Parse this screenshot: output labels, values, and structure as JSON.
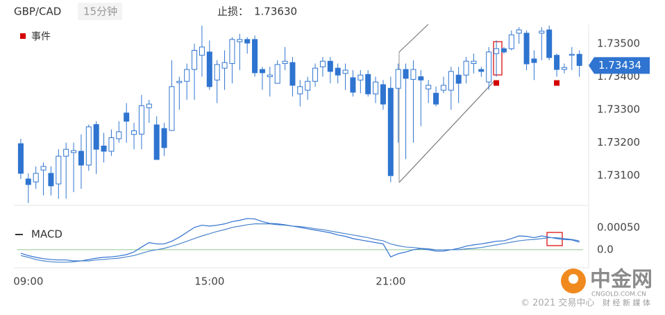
{
  "chart_data": [
    {
      "type": "candlestick",
      "title": "GBP/CAD",
      "subtitle": "15分钟",
      "stop_loss_label": "止损：",
      "stop_loss": "1.73630",
      "categories": [
        null,
        "09:00",
        null,
        null,
        null,
        null,
        null,
        null,
        null,
        null,
        null,
        null,
        null,
        null,
        null,
        null,
        null,
        null,
        null,
        null,
        null,
        null,
        null,
        null,
        null,
        "15:00",
        null,
        null,
        null,
        null,
        null,
        null,
        null,
        null,
        null,
        null,
        null,
        null,
        null,
        null,
        null,
        null,
        null,
        null,
        null,
        null,
        null,
        null,
        null,
        "21:00",
        null,
        null,
        null,
        null,
        null,
        null,
        null,
        null,
        null,
        null,
        null,
        null,
        null,
        null,
        null,
        null,
        null,
        null,
        null,
        null,
        null,
        null,
        null,
        null,
        null
      ],
      "open": [
        1.73197,
        1.7309,
        1.73081,
        1.73117,
        1.73107,
        1.73075,
        1.73159,
        1.7317,
        1.73174,
        1.73132,
        1.73255,
        1.7319,
        1.73174,
        1.73212,
        1.7329,
        1.73225,
        1.73226,
        1.73306,
        1.73254,
        1.73243,
        1.73237,
        1.73382,
        1.73386,
        1.73422,
        1.73465,
        1.73475,
        1.7339,
        1.73426,
        1.7344,
        1.73506,
        1.73513,
        1.73513,
        1.73422,
        1.734,
        1.7338,
        1.7344,
        1.73443,
        1.73348,
        1.73359,
        1.73386,
        1.7343,
        1.73447,
        1.73426,
        1.7341,
        1.73397,
        1.7339,
        1.73407,
        1.73348,
        1.73376,
        1.73365,
        1.73365,
        1.73422,
        1.73392,
        1.734,
        1.73363,
        1.7335,
        1.73359,
        1.73359,
        1.73405,
        1.73405,
        1.7344,
        1.73422,
        1.73384,
        1.7347,
        1.73485,
        1.73485,
        1.73532,
        1.73532,
        1.73454,
        1.73532,
        1.73542,
        1.73465,
        1.73422,
        1.73465,
        1.73468
      ],
      "high": [
        1.73212,
        1.73107,
        1.73128,
        1.7314,
        1.73128,
        1.7318,
        1.732,
        1.732,
        1.73225,
        1.73255,
        1.73265,
        1.7323,
        1.7324,
        1.73265,
        1.7332,
        1.7326,
        1.73345,
        1.7333,
        1.7328,
        1.7326,
        1.7345,
        1.734,
        1.7344,
        1.735,
        1.73555,
        1.7351,
        1.7345,
        1.7348,
        1.7352,
        1.7353,
        1.7352,
        1.73525,
        1.7343,
        1.7343,
        1.7345,
        1.7349,
        1.7346,
        1.7339,
        1.734,
        1.7344,
        1.7346,
        1.7346,
        1.7344,
        1.7344,
        1.7342,
        1.7342,
        1.7342,
        1.734,
        1.7339,
        1.734,
        1.7344,
        1.7344,
        1.7345,
        1.7342,
        1.7339,
        1.7337,
        1.734,
        1.7343,
        1.7343,
        1.7346,
        1.7347,
        1.7343,
        1.7349,
        1.7351,
        1.7349,
        1.7354,
        1.7355,
        1.7354,
        1.7348,
        1.7355,
        1.73555,
        1.7347,
        1.7344,
        1.7349,
        1.7348
      ],
      "low": [
        1.7309,
        1.73017,
        1.7306,
        1.7304,
        1.7304,
        1.7303,
        1.7303,
        1.7305,
        1.7306,
        1.73115,
        1.73105,
        1.7314,
        1.7316,
        1.732,
        1.732,
        1.7318,
        1.7318,
        1.7326,
        1.73149,
        1.7316,
        1.73237,
        1.733,
        1.7333,
        1.7333,
        1.734,
        1.7336,
        1.7332,
        1.7336,
        1.7338,
        1.7342,
        1.7347,
        1.734,
        1.7336,
        1.7334,
        1.7338,
        1.7342,
        1.7334,
        1.7331,
        1.7333,
        1.7337,
        1.734,
        1.7338,
        1.7338,
        1.7336,
        1.7334,
        1.7335,
        1.7334,
        1.7332,
        1.733,
        1.7308,
        1.732,
        1.7315,
        1.732,
        1.7325,
        1.7332,
        1.7331,
        1.7335,
        1.733,
        1.7332,
        1.7338,
        1.7341,
        1.734,
        1.7336,
        1.734,
        1.7347,
        1.7348,
        1.735,
        1.7342,
        1.7339,
        1.7345,
        1.7345,
        1.734,
        1.7341,
        1.7342,
        1.734
      ],
      "close": [
        1.73107,
        1.73073,
        1.73107,
        1.73128,
        1.73069,
        1.73159,
        1.7318,
        1.73176,
        1.73132,
        1.73248,
        1.7318,
        1.73174,
        1.73215,
        1.73233,
        1.73265,
        1.73236,
        1.73312,
        1.73317,
        1.73149,
        1.73185,
        1.7337,
        1.73386,
        1.73422,
        1.7348,
        1.7349,
        1.7337,
        1.73437,
        1.73443,
        1.73513,
        1.73513,
        1.73502,
        1.73412,
        1.73412,
        1.73405,
        1.73437,
        1.73447,
        1.73374,
        1.7337,
        1.73386,
        1.73426,
        1.73447,
        1.73416,
        1.73405,
        1.7342,
        1.73353,
        1.73405,
        1.73348,
        1.73384,
        1.73317,
        1.731,
        1.73422,
        1.73395,
        1.73422,
        1.7339,
        1.73374,
        1.73317,
        1.73374,
        1.73416,
        1.7338,
        1.73447,
        1.73447,
        1.73416,
        1.73475,
        1.73485,
        1.73475,
        1.73527,
        1.73542,
        1.73439,
        1.73443,
        1.73538,
        1.73458,
        1.73422,
        1.73428,
        1.73468,
        1.73434
      ],
      "up_color": "#ffffff",
      "down_color": "#2e74d0",
      "ylim": [
        1.73012,
        1.73559
      ],
      "yticks": [
        {
          "value": 1.735,
          "label": "1.73500"
        },
        {
          "value": 1.734,
          "label": "1.73400"
        },
        {
          "value": 1.733,
          "label": "1.73300"
        },
        {
          "value": 1.732,
          "label": "1.73200"
        },
        {
          "value": 1.731,
          "label": "1.73100"
        }
      ],
      "grid": false,
      "last_price": {
        "value": 1.73434,
        "label": "1.73434"
      },
      "events": {
        "label": "事件",
        "color": "#d40000",
        "indices": [
          63,
          71
        ]
      }
    },
    {
      "type": "line",
      "title": "MACD",
      "series": [
        {
          "color": "#2f6fd0",
          "values": [
            -8e-05,
            -0.00013,
            -0.00017,
            -0.0002,
            -0.00022,
            -0.00023,
            -0.00023,
            -0.00025,
            -0.00025,
            -0.00022,
            -0.00019,
            -0.00017,
            -0.00016,
            -0.00014,
            -0.00011,
            -5e-05,
            6e-05,
            0.00016,
            0.00013,
            0.00013,
            0.00019,
            0.00028,
            0.00039,
            0.0005,
            0.00055,
            0.00053,
            0.00055,
            0.00058,
            0.00063,
            0.00066,
            0.0007,
            0.00069,
            0.00063,
            0.00059,
            0.00058,
            0.00056,
            0.00053,
            0.0005,
            0.00047,
            0.00044,
            0.00041,
            0.00038,
            0.00033,
            0.0003,
            0.00025,
            0.00022,
            0.00019,
            0.00016,
            0.00013,
            -0.00016,
            -9e-05,
            -5e-05,
            0,
            2e-05,
            0,
            -3e-05,
            -3e-05,
            0,
            3e-05,
            8e-05,
            0.00011,
            0.00013,
            0.00016,
            0.00019,
            0.0002,
            0.00025,
            0.00031,
            0.0003,
            0.00027,
            0.00031,
            0.00028,
            0.00025,
            0.00023,
            0.00022,
            0.00017
          ]
        },
        {
          "color": "#4a84cc",
          "values": [
            -0.00013,
            -0.00017,
            -0.00022,
            -0.00025,
            -0.00027,
            -0.00028,
            -0.00028,
            -0.00027,
            -0.00025,
            -0.00025,
            -0.00023,
            -0.00022,
            -0.0002,
            -0.00019,
            -0.00016,
            -0.00013,
            -8e-05,
            -3e-05,
            0,
            3e-05,
            8e-05,
            0.00013,
            0.00019,
            0.00025,
            0.00031,
            0.00036,
            0.00041,
            0.00045,
            0.0005,
            0.00053,
            0.00056,
            0.00058,
            0.00058,
            0.00058,
            0.00056,
            0.00055,
            0.00053,
            0.00052,
            0.0005,
            0.00047,
            0.00045,
            0.00042,
            0.00039,
            0.00036,
            0.00033,
            0.0003,
            0.00027,
            0.00023,
            0.0002,
            0.00013,
            9e-05,
            6e-05,
            5e-05,
            3e-05,
            2e-05,
            0,
            0,
            0,
            0,
            2e-05,
            3e-05,
            5e-05,
            8e-05,
            0.00011,
            0.00014,
            0.00017,
            0.0002,
            0.00022,
            0.00023,
            0.00025,
            0.00027,
            0.00027,
            0.00025,
            0.00023,
            0.0002
          ]
        }
      ],
      "ylim": [
        -0.00039,
        0.00073
      ],
      "yticks": [
        {
          "value": 0.0005,
          "label": "0.00050"
        },
        {
          "value": 0,
          "label": "0.0"
        }
      ],
      "zero_line_color": "#8fc98f"
    }
  ],
  "watermark": {
    "brand": "中金网",
    "site": "CNGOLD.COM.CN",
    "tagline": "财 经 新 媒 体",
    "copyright": "© 2021 交易中心"
  }
}
